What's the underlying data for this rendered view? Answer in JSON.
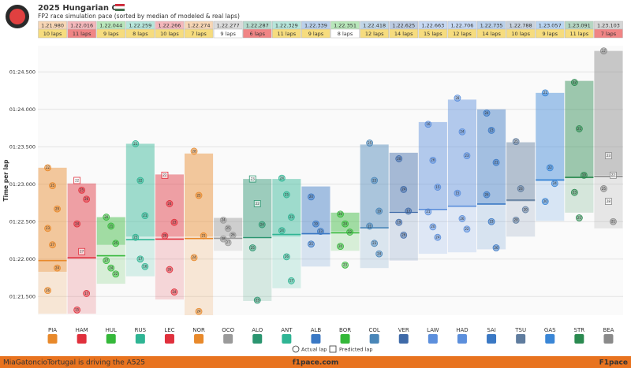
{
  "chart_data": {
    "type": "box",
    "title": "2025 Hungarian GP",
    "subtitle": "FP2 race simulation pace (sorted by median of modeled & real laps)",
    "y_label": "Time per lap",
    "ylim": [
      81.25,
      84.85
    ],
    "yticks": [
      {
        "value": 81.5,
        "label": "01:21.500"
      },
      {
        "value": 82,
        "label": "01:22.000"
      },
      {
        "value": 82.5,
        "label": "01:22.500"
      },
      {
        "value": 83,
        "label": "01:23.000"
      },
      {
        "value": 83.5,
        "label": "01:23.500"
      },
      {
        "value": 84,
        "label": "01:24.000"
      },
      {
        "value": 84.5,
        "label": "01:24.500"
      }
    ],
    "grid": true,
    "legend": {
      "actual": "Actual lap",
      "predicted": "Predicted lap"
    },
    "drivers": [
      {
        "name": "PIA",
        "color": "#e8892b",
        "median": {
          "value": 81.98,
          "label": "1.21.980"
        },
        "laps": "10 laps",
        "laps_color": "#f6dc7e",
        "top": 83.22,
        "mid": 81.83,
        "bottom": 81.27,
        "points": [
          {
            "lap": 22,
            "time": 83.22,
            "predicted": false
          },
          {
            "lap": 25,
            "time": 82.98,
            "predicted": false
          },
          {
            "lap": 29,
            "time": 82.67,
            "predicted": false
          },
          {
            "lap": 23,
            "time": 82.41,
            "predicted": false
          },
          {
            "lap": 27,
            "time": 82.19,
            "predicted": false
          },
          {
            "lap": 24,
            "time": 81.88,
            "predicted": false
          },
          {
            "lap": 26,
            "time": 81.58,
            "predicted": false
          }
        ]
      },
      {
        "name": "HAM",
        "color": "#e0303c",
        "median": {
          "value": 82.016,
          "label": "1.22.016"
        },
        "laps": "11 laps",
        "laps_color": "#f08585",
        "top": 83.01,
        "mid": 82.01,
        "bottom": 81.27,
        "points": [
          {
            "lap": 22,
            "time": 83.05,
            "predicted": true
          },
          {
            "lap": 25,
            "time": 82.92,
            "predicted": false
          },
          {
            "lap": 26,
            "time": 82.8,
            "predicted": false
          },
          {
            "lap": 24,
            "time": 82.47,
            "predicted": false
          },
          {
            "lap": 27,
            "time": 82.1,
            "predicted": true
          },
          {
            "lap": 17,
            "time": 81.54,
            "predicted": false
          },
          {
            "lap": 15,
            "time": 81.32,
            "predicted": false
          }
        ]
      },
      {
        "name": "HUL",
        "color": "#35b83a",
        "median": {
          "value": 82.044,
          "label": "1.22.044"
        },
        "laps": "9 laps",
        "laps_color": "#f6dc7e",
        "top": 82.56,
        "mid": 82.19,
        "bottom": 81.67,
        "points": [
          {
            "lap": 20,
            "time": 82.56,
            "predicted": false
          },
          {
            "lap": 21,
            "time": 82.44,
            "predicted": false
          },
          {
            "lap": 25,
            "time": 82.21,
            "predicted": false
          },
          {
            "lap": 27,
            "time": 81.98,
            "predicted": false
          },
          {
            "lap": 24,
            "time": 81.88,
            "predicted": false
          },
          {
            "lap": 22,
            "time": 81.8,
            "predicted": false
          }
        ]
      },
      {
        "name": "RUS",
        "color": "#2fb594",
        "median": {
          "value": 82.259,
          "label": "1.22.259"
        },
        "laps": "8 laps",
        "laps_color": "#f6dc7e",
        "top": 83.54,
        "mid": 82.3,
        "bottom": 81.77,
        "points": [
          {
            "lap": 21,
            "time": 83.54,
            "predicted": false
          },
          {
            "lap": 22,
            "time": 83.05,
            "predicted": false
          },
          {
            "lap": 21,
            "time": 82.58,
            "predicted": false
          },
          {
            "lap": 23,
            "time": 82.29,
            "predicted": false
          },
          {
            "lap": 17,
            "time": 82.0,
            "predicted": false
          },
          {
            "lap": 16,
            "time": 81.9,
            "predicted": false
          }
        ]
      },
      {
        "name": "LEC",
        "color": "#e0303c",
        "median": {
          "value": 82.266,
          "label": "1.22.266"
        },
        "laps": "10 laps",
        "laps_color": "#f6dc7e",
        "top": 83.13,
        "mid": 82.3,
        "bottom": 81.46,
        "points": [
          {
            "lap": 22,
            "time": 83.12,
            "predicted": true
          },
          {
            "lap": 24,
            "time": 82.74,
            "predicted": false
          },
          {
            "lap": 23,
            "time": 82.49,
            "predicted": false
          },
          {
            "lap": 28,
            "time": 82.31,
            "predicted": false
          },
          {
            "lap": 26,
            "time": 81.86,
            "predicted": false
          },
          {
            "lap": 24,
            "time": 81.56,
            "predicted": false
          }
        ]
      },
      {
        "name": "NOR",
        "color": "#e8892b",
        "median": {
          "value": 82.274,
          "label": "1.22.274"
        },
        "laps": "7 laps",
        "laps_color": "#f6dc7e",
        "top": 83.41,
        "mid": 82.3,
        "bottom": 81.25,
        "points": [
          {
            "lap": 28,
            "time": 83.44,
            "predicted": false
          },
          {
            "lap": 25,
            "time": 82.85,
            "predicted": false
          },
          {
            "lap": 21,
            "time": 82.31,
            "predicted": false
          },
          {
            "lap": 24,
            "time": 82.02,
            "predicted": false
          },
          {
            "lap": 24,
            "time": 81.3,
            "predicted": false
          }
        ]
      },
      {
        "name": "OCO",
        "color": "#9a9a9a",
        "median": {
          "value": 82.277,
          "label": "1.22.277"
        },
        "laps": "9 laps",
        "laps_color": "#ffffff",
        "top": 82.55,
        "mid": 82.3,
        "bottom": 82.11,
        "points": [
          {
            "lap": 24,
            "time": 82.52,
            "predicted": false
          },
          {
            "lap": 25,
            "time": 82.41,
            "predicted": false
          },
          {
            "lap": 26,
            "time": 82.32,
            "predicted": false
          },
          {
            "lap": 28,
            "time": 82.27,
            "predicted": false
          },
          {
            "lap": 27,
            "time": 82.22,
            "predicted": false
          }
        ]
      },
      {
        "name": "ALO",
        "color": "#2b9570",
        "median": {
          "value": 82.287,
          "label": "1.22.287"
        },
        "laps": "6 laps",
        "laps_color": "#f08585",
        "top": 83.07,
        "mid": 82.3,
        "bottom": 81.44,
        "points": [
          {
            "lap": 23,
            "time": 83.07,
            "predicted": true
          },
          {
            "lap": 22,
            "time": 82.74,
            "predicted": true
          },
          {
            "lap": 24,
            "time": 82.46,
            "predicted": false
          },
          {
            "lap": 25,
            "time": 82.15,
            "predicted": false
          },
          {
            "lap": 23,
            "time": 81.45,
            "predicted": false
          }
        ]
      },
      {
        "name": "ANT",
        "color": "#2fb594",
        "median": {
          "value": 82.329,
          "label": "1.22.329"
        },
        "laps": "11 laps",
        "laps_color": "#f6dc7e",
        "top": 83.07,
        "mid": 82.3,
        "bottom": 81.61,
        "points": [
          {
            "lap": 24,
            "time": 83.08,
            "predicted": false
          },
          {
            "lap": 25,
            "time": 82.86,
            "predicted": false
          },
          {
            "lap": 23,
            "time": 82.56,
            "predicted": false
          },
          {
            "lap": 24,
            "time": 82.38,
            "predicted": false
          },
          {
            "lap": 26,
            "time": 82.03,
            "predicted": false
          },
          {
            "lap": 17,
            "time": 81.71,
            "predicted": false
          }
        ]
      },
      {
        "name": "ALB",
        "color": "#3a78c4",
        "median": {
          "value": 82.339,
          "label": "1.22.339"
        },
        "laps": "9 laps",
        "laps_color": "#f6dc7e",
        "top": 82.97,
        "mid": 82.33,
        "bottom": 81.9,
        "points": [
          {
            "lap": 20,
            "time": 82.83,
            "predicted": false
          },
          {
            "lap": 19,
            "time": 82.47,
            "predicted": false
          },
          {
            "lap": 23,
            "time": 82.37,
            "predicted": false
          },
          {
            "lap": 25,
            "time": 82.2,
            "predicted": false
          }
        ]
      },
      {
        "name": "BOR",
        "color": "#35b83a",
        "median": {
          "value": 82.351,
          "label": "1.22.351"
        },
        "laps": "8 laps",
        "laps_color": "#ffffff",
        "top": 82.62,
        "mid": 82.37,
        "bottom": 82.11,
        "points": [
          {
            "lap": 20,
            "time": 82.6,
            "predicted": false
          },
          {
            "lap": 24,
            "time": 82.47,
            "predicted": false
          },
          {
            "lap": 22,
            "time": 82.36,
            "predicted": false
          },
          {
            "lap": 20,
            "time": 82.17,
            "predicted": false
          },
          {
            "lap": 23,
            "time": 81.92,
            "predicted": false
          }
        ]
      },
      {
        "name": "COL",
        "color": "#4a86b8",
        "median": {
          "value": 82.418,
          "label": "1.22.418"
        },
        "laps": "12 laps",
        "laps_color": "#f6dc7e",
        "top": 83.53,
        "mid": 82.41,
        "bottom": 81.88,
        "points": [
          {
            "lap": 25,
            "time": 83.55,
            "predicted": false
          },
          {
            "lap": 23,
            "time": 83.05,
            "predicted": false
          },
          {
            "lap": 19,
            "time": 82.64,
            "predicted": false
          },
          {
            "lap": 21,
            "time": 82.44,
            "predicted": false
          },
          {
            "lap": 23,
            "time": 82.21,
            "predicted": false
          },
          {
            "lap": 24,
            "time": 82.07,
            "predicted": false
          }
        ]
      },
      {
        "name": "VER",
        "color": "#3f6aa8",
        "median": {
          "value": 82.625,
          "label": "1.22.625"
        },
        "laps": "14 laps",
        "laps_color": "#f6dc7e",
        "top": 83.42,
        "mid": 82.64,
        "bottom": 81.98,
        "points": [
          {
            "lap": 20,
            "time": 83.34,
            "predicted": false
          },
          {
            "lap": 24,
            "time": 82.93,
            "predicted": false
          },
          {
            "lap": 17,
            "time": 82.64,
            "predicted": false
          },
          {
            "lap": 19,
            "time": 82.49,
            "predicted": false
          },
          {
            "lap": 26,
            "time": 82.32,
            "predicted": false
          }
        ]
      },
      {
        "name": "LAW",
        "color": "#5c8fdc",
        "median": {
          "value": 82.663,
          "label": "1.22.663"
        },
        "laps": "15 laps",
        "laps_color": "#f6dc7e",
        "top": 83.83,
        "mid": 82.66,
        "bottom": 82.07,
        "points": [
          {
            "lap": 16,
            "time": 83.8,
            "predicted": false
          },
          {
            "lap": 26,
            "time": 83.32,
            "predicted": false
          },
          {
            "lap": 15,
            "time": 82.96,
            "predicted": false
          },
          {
            "lap": 21,
            "time": 82.63,
            "predicted": false
          },
          {
            "lap": 20,
            "time": 82.43,
            "predicted": false
          },
          {
            "lap": 24,
            "time": 82.29,
            "predicted": false
          }
        ]
      },
      {
        "name": "HAD",
        "color": "#5c8fdc",
        "median": {
          "value": 82.706,
          "label": "1.22.706"
        },
        "laps": "12 laps",
        "laps_color": "#f6dc7e",
        "top": 84.13,
        "mid": 82.7,
        "bottom": 82.09,
        "points": [
          {
            "lap": 28,
            "time": 84.15,
            "predicted": false
          },
          {
            "lap": 24,
            "time": 83.7,
            "predicted": false
          },
          {
            "lap": 23,
            "time": 83.38,
            "predicted": false
          },
          {
            "lap": 15,
            "time": 82.88,
            "predicted": false
          },
          {
            "lap": 26,
            "time": 82.54,
            "predicted": false
          },
          {
            "lap": 22,
            "time": 82.4,
            "predicted": false
          }
        ]
      },
      {
        "name": "SAI",
        "color": "#3a78c4",
        "median": {
          "value": 82.735,
          "label": "1.22.735"
        },
        "laps": "14 laps",
        "laps_color": "#f6dc7e",
        "top": 84.0,
        "mid": 82.74,
        "bottom": 82.13,
        "points": [
          {
            "lap": 24,
            "time": 83.95,
            "predicted": false
          },
          {
            "lap": 23,
            "time": 83.72,
            "predicted": false
          },
          {
            "lap": 21,
            "time": 83.29,
            "predicted": false
          },
          {
            "lap": 26,
            "time": 82.86,
            "predicted": false
          },
          {
            "lap": 23,
            "time": 82.5,
            "predicted": false
          },
          {
            "lap": 26,
            "time": 82.15,
            "predicted": false
          }
        ]
      },
      {
        "name": "TSU",
        "color": "#5f7c9e",
        "median": {
          "value": 82.788,
          "label": "1.22.788"
        },
        "laps": "10 laps",
        "laps_color": "#f6dc7e",
        "top": 83.56,
        "mid": 82.77,
        "bottom": 82.3,
        "points": [
          {
            "lap": 25,
            "time": 83.57,
            "predicted": false
          },
          {
            "lap": 23,
            "time": 82.94,
            "predicted": false
          },
          {
            "lap": 20,
            "time": 82.66,
            "predicted": false
          },
          {
            "lap": 28,
            "time": 82.52,
            "predicted": false
          }
        ]
      },
      {
        "name": "GAS",
        "color": "#3a86d6",
        "median": {
          "value": 83.057,
          "label": "1.23.057"
        },
        "laps": "9 laps",
        "laps_color": "#f6dc7e",
        "top": 84.22,
        "mid": 83.04,
        "bottom": 82.51,
        "points": [
          {
            "lap": 21,
            "time": 84.22,
            "predicted": false
          },
          {
            "lap": 22,
            "time": 83.22,
            "predicted": false
          },
          {
            "lap": 24,
            "time": 83.01,
            "predicted": false
          },
          {
            "lap": 20,
            "time": 82.77,
            "predicted": false
          }
        ]
      },
      {
        "name": "STR",
        "color": "#2b8a50",
        "median": {
          "value": 83.091,
          "label": "1.23.091"
        },
        "laps": "11 laps",
        "laps_color": "#f6dc7e",
        "top": 84.38,
        "mid": 83.08,
        "bottom": 82.62,
        "points": [
          {
            "lap": 22,
            "time": 84.36,
            "predicted": false
          },
          {
            "lap": 21,
            "time": 83.74,
            "predicted": false
          },
          {
            "lap": 19,
            "time": 83.12,
            "predicted": false
          },
          {
            "lap": 23,
            "time": 82.89,
            "predicted": false
          },
          {
            "lap": 25,
            "time": 82.55,
            "predicted": false
          }
        ]
      },
      {
        "name": "BEA",
        "color": "#8a8a8a",
        "median": {
          "value": 83.103,
          "label": "1.23.103"
        },
        "laps": "7 laps",
        "laps_color": "#f08585",
        "top": 84.78,
        "mid": 83.12,
        "bottom": 82.41,
        "points": [
          {
            "lap": 17,
            "time": 84.78,
            "predicted": false
          },
          {
            "lap": 23,
            "time": 83.38,
            "predicted": true
          },
          {
            "lap": 22,
            "time": 83.12,
            "predicted": true
          },
          {
            "lap": 25,
            "time": 82.94,
            "predicted": false
          },
          {
            "lap": 28,
            "time": 82.77,
            "predicted": true
          },
          {
            "lap": 21,
            "time": 82.5,
            "predicted": false
          }
        ]
      }
    ]
  },
  "footer": {
    "user": "MiaGatoncioTortugal is driving the A525",
    "site": "f1pace.com",
    "brand": "F1pace"
  }
}
